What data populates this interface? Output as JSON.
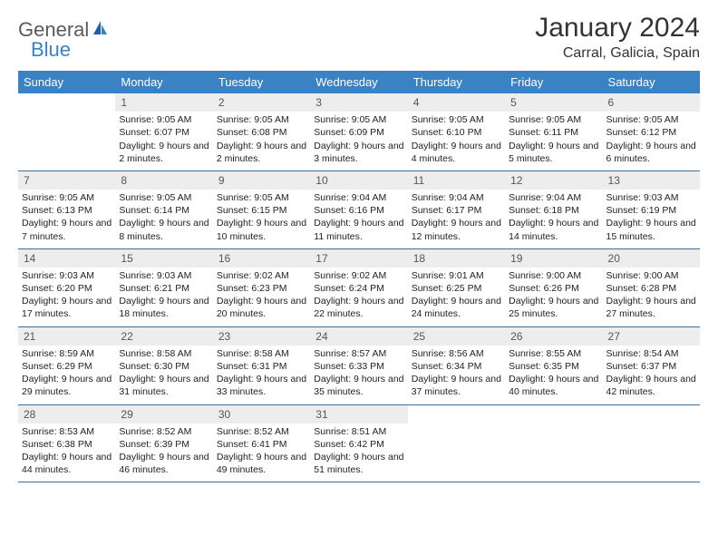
{
  "logo": {
    "general": "General",
    "blue": "Blue"
  },
  "title": "January 2024",
  "location": "Carral, Galicia, Spain",
  "colors": {
    "header_bg": "#3b82c4",
    "header_text": "#ffffff",
    "daynum_bg": "#ededed",
    "daynum_text": "#555555",
    "text": "#222222",
    "rule": "#3b6fa0",
    "logo_general": "#5a5a5a",
    "logo_blue": "#3b82c4"
  },
  "typography": {
    "title_fontsize": 30,
    "location_fontsize": 16,
    "dow_fontsize": 13,
    "daynum_fontsize": 12,
    "body_fontsize": 10.5
  },
  "days_of_week": [
    "Sunday",
    "Monday",
    "Tuesday",
    "Wednesday",
    "Thursday",
    "Friday",
    "Saturday"
  ],
  "weeks": [
    [
      {
        "n": "",
        "sunrise": "",
        "sunset": "",
        "daylight": ""
      },
      {
        "n": "1",
        "sunrise": "Sunrise: 9:05 AM",
        "sunset": "Sunset: 6:07 PM",
        "daylight": "Daylight: 9 hours and 2 minutes."
      },
      {
        "n": "2",
        "sunrise": "Sunrise: 9:05 AM",
        "sunset": "Sunset: 6:08 PM",
        "daylight": "Daylight: 9 hours and 2 minutes."
      },
      {
        "n": "3",
        "sunrise": "Sunrise: 9:05 AM",
        "sunset": "Sunset: 6:09 PM",
        "daylight": "Daylight: 9 hours and 3 minutes."
      },
      {
        "n": "4",
        "sunrise": "Sunrise: 9:05 AM",
        "sunset": "Sunset: 6:10 PM",
        "daylight": "Daylight: 9 hours and 4 minutes."
      },
      {
        "n": "5",
        "sunrise": "Sunrise: 9:05 AM",
        "sunset": "Sunset: 6:11 PM",
        "daylight": "Daylight: 9 hours and 5 minutes."
      },
      {
        "n": "6",
        "sunrise": "Sunrise: 9:05 AM",
        "sunset": "Sunset: 6:12 PM",
        "daylight": "Daylight: 9 hours and 6 minutes."
      }
    ],
    [
      {
        "n": "7",
        "sunrise": "Sunrise: 9:05 AM",
        "sunset": "Sunset: 6:13 PM",
        "daylight": "Daylight: 9 hours and 7 minutes."
      },
      {
        "n": "8",
        "sunrise": "Sunrise: 9:05 AM",
        "sunset": "Sunset: 6:14 PM",
        "daylight": "Daylight: 9 hours and 8 minutes."
      },
      {
        "n": "9",
        "sunrise": "Sunrise: 9:05 AM",
        "sunset": "Sunset: 6:15 PM",
        "daylight": "Daylight: 9 hours and 10 minutes."
      },
      {
        "n": "10",
        "sunrise": "Sunrise: 9:04 AM",
        "sunset": "Sunset: 6:16 PM",
        "daylight": "Daylight: 9 hours and 11 minutes."
      },
      {
        "n": "11",
        "sunrise": "Sunrise: 9:04 AM",
        "sunset": "Sunset: 6:17 PM",
        "daylight": "Daylight: 9 hours and 12 minutes."
      },
      {
        "n": "12",
        "sunrise": "Sunrise: 9:04 AM",
        "sunset": "Sunset: 6:18 PM",
        "daylight": "Daylight: 9 hours and 14 minutes."
      },
      {
        "n": "13",
        "sunrise": "Sunrise: 9:03 AM",
        "sunset": "Sunset: 6:19 PM",
        "daylight": "Daylight: 9 hours and 15 minutes."
      }
    ],
    [
      {
        "n": "14",
        "sunrise": "Sunrise: 9:03 AM",
        "sunset": "Sunset: 6:20 PM",
        "daylight": "Daylight: 9 hours and 17 minutes."
      },
      {
        "n": "15",
        "sunrise": "Sunrise: 9:03 AM",
        "sunset": "Sunset: 6:21 PM",
        "daylight": "Daylight: 9 hours and 18 minutes."
      },
      {
        "n": "16",
        "sunrise": "Sunrise: 9:02 AM",
        "sunset": "Sunset: 6:23 PM",
        "daylight": "Daylight: 9 hours and 20 minutes."
      },
      {
        "n": "17",
        "sunrise": "Sunrise: 9:02 AM",
        "sunset": "Sunset: 6:24 PM",
        "daylight": "Daylight: 9 hours and 22 minutes."
      },
      {
        "n": "18",
        "sunrise": "Sunrise: 9:01 AM",
        "sunset": "Sunset: 6:25 PM",
        "daylight": "Daylight: 9 hours and 24 minutes."
      },
      {
        "n": "19",
        "sunrise": "Sunrise: 9:00 AM",
        "sunset": "Sunset: 6:26 PM",
        "daylight": "Daylight: 9 hours and 25 minutes."
      },
      {
        "n": "20",
        "sunrise": "Sunrise: 9:00 AM",
        "sunset": "Sunset: 6:28 PM",
        "daylight": "Daylight: 9 hours and 27 minutes."
      }
    ],
    [
      {
        "n": "21",
        "sunrise": "Sunrise: 8:59 AM",
        "sunset": "Sunset: 6:29 PM",
        "daylight": "Daylight: 9 hours and 29 minutes."
      },
      {
        "n": "22",
        "sunrise": "Sunrise: 8:58 AM",
        "sunset": "Sunset: 6:30 PM",
        "daylight": "Daylight: 9 hours and 31 minutes."
      },
      {
        "n": "23",
        "sunrise": "Sunrise: 8:58 AM",
        "sunset": "Sunset: 6:31 PM",
        "daylight": "Daylight: 9 hours and 33 minutes."
      },
      {
        "n": "24",
        "sunrise": "Sunrise: 8:57 AM",
        "sunset": "Sunset: 6:33 PM",
        "daylight": "Daylight: 9 hours and 35 minutes."
      },
      {
        "n": "25",
        "sunrise": "Sunrise: 8:56 AM",
        "sunset": "Sunset: 6:34 PM",
        "daylight": "Daylight: 9 hours and 37 minutes."
      },
      {
        "n": "26",
        "sunrise": "Sunrise: 8:55 AM",
        "sunset": "Sunset: 6:35 PM",
        "daylight": "Daylight: 9 hours and 40 minutes."
      },
      {
        "n": "27",
        "sunrise": "Sunrise: 8:54 AM",
        "sunset": "Sunset: 6:37 PM",
        "daylight": "Daylight: 9 hours and 42 minutes."
      }
    ],
    [
      {
        "n": "28",
        "sunrise": "Sunrise: 8:53 AM",
        "sunset": "Sunset: 6:38 PM",
        "daylight": "Daylight: 9 hours and 44 minutes."
      },
      {
        "n": "29",
        "sunrise": "Sunrise: 8:52 AM",
        "sunset": "Sunset: 6:39 PM",
        "daylight": "Daylight: 9 hours and 46 minutes."
      },
      {
        "n": "30",
        "sunrise": "Sunrise: 8:52 AM",
        "sunset": "Sunset: 6:41 PM",
        "daylight": "Daylight: 9 hours and 49 minutes."
      },
      {
        "n": "31",
        "sunrise": "Sunrise: 8:51 AM",
        "sunset": "Sunset: 6:42 PM",
        "daylight": "Daylight: 9 hours and 51 minutes."
      },
      {
        "n": "",
        "sunrise": "",
        "sunset": "",
        "daylight": ""
      },
      {
        "n": "",
        "sunrise": "",
        "sunset": "",
        "daylight": ""
      },
      {
        "n": "",
        "sunrise": "",
        "sunset": "",
        "daylight": ""
      }
    ]
  ]
}
